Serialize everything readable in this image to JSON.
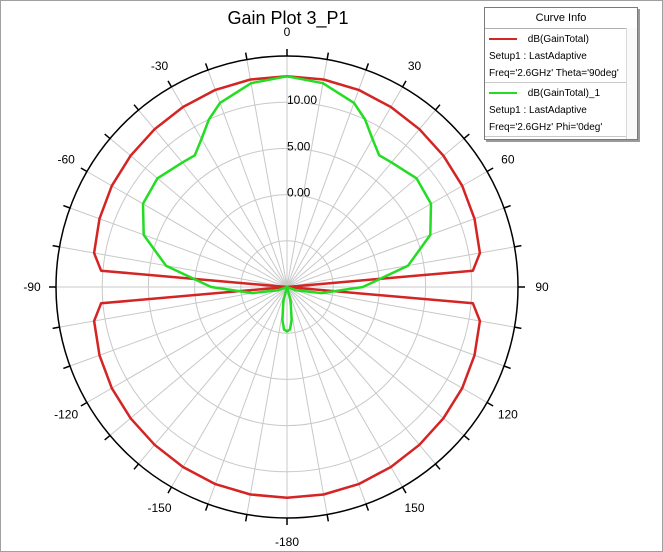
{
  "chart_data": {
    "type": "polar-line",
    "title": "Gain Plot 3_P1",
    "angular_axis": {
      "zero_location": "top",
      "direction": "clockwise",
      "tick_labels": [
        {
          "angle": 0,
          "label": "0"
        },
        {
          "angle": 30,
          "label": "30"
        },
        {
          "angle": 60,
          "label": "60"
        },
        {
          "angle": 90,
          "label": "90"
        },
        {
          "angle": 120,
          "label": "120"
        },
        {
          "angle": 150,
          "label": "150"
        },
        {
          "angle": 180,
          "label": "-180"
        },
        {
          "angle": -150,
          "label": "-150"
        },
        {
          "angle": -120,
          "label": "-120"
        },
        {
          "angle": -90,
          "label": "-90"
        },
        {
          "angle": -60,
          "label": "-60"
        },
        {
          "angle": -30,
          "label": "-30"
        }
      ]
    },
    "radial_axis": {
      "unit": "dB",
      "range": [
        -10,
        15
      ],
      "ticks": [
        -10,
        -5,
        0,
        5,
        10,
        15
      ],
      "tick_labels": [
        {
          "value": 0,
          "label": "0.00"
        },
        {
          "value": 5,
          "label": "5.00"
        },
        {
          "value": 10,
          "label": "10.00"
        }
      ]
    },
    "grid": true,
    "legend_position": "top-right",
    "legend": {
      "title": "Curve Info",
      "entries": [
        {
          "name": "dB(GainTotal)",
          "setup": "Setup1 : LastAdaptive",
          "params": "Freq='2.6GHz' Theta='90deg'",
          "color": "#d42424"
        },
        {
          "name": "dB(GainTotal)_1",
          "setup": "Setup1 : LastAdaptive",
          "params": "Freq='2.6GHz' Phi='0deg'",
          "color": "#22dd22"
        }
      ]
    },
    "series": [
      {
        "name": "dB(GainTotal)",
        "color": "#d42424",
        "points": [
          [
            0,
            12.8
          ],
          [
            10,
            12.8
          ],
          [
            20,
            12.7
          ],
          [
            30,
            12.5
          ],
          [
            40,
            12.3
          ],
          [
            50,
            12.1
          ],
          [
            60,
            11.9
          ],
          [
            70,
            11.6
          ],
          [
            80,
            11.2
          ],
          [
            85,
            10.2
          ],
          [
            90,
            -10
          ],
          [
            95,
            10.2
          ],
          [
            100,
            11.2
          ],
          [
            110,
            11.6
          ],
          [
            120,
            11.9
          ],
          [
            130,
            12.1
          ],
          [
            140,
            12.3
          ],
          [
            150,
            12.5
          ],
          [
            160,
            12.7
          ],
          [
            170,
            12.8
          ],
          [
            180,
            12.8
          ],
          [
            190,
            12.8
          ],
          [
            200,
            12.7
          ],
          [
            210,
            12.5
          ],
          [
            220,
            12.3
          ],
          [
            230,
            12.1
          ],
          [
            240,
            11.9
          ],
          [
            250,
            11.6
          ],
          [
            260,
            11.2
          ],
          [
            265,
            10.2
          ],
          [
            270,
            -10
          ],
          [
            275,
            10.2
          ],
          [
            280,
            11.2
          ],
          [
            290,
            11.6
          ],
          [
            300,
            11.9
          ],
          [
            310,
            12.1
          ],
          [
            320,
            12.3
          ],
          [
            330,
            12.5
          ],
          [
            340,
            12.7
          ],
          [
            350,
            12.8
          ],
          [
            360,
            12.8
          ]
        ]
      },
      {
        "name": "dB(GainTotal)_1",
        "color": "#22dd22",
        "points": [
          [
            0,
            12.8
          ],
          [
            10,
            12.4
          ],
          [
            20,
            11.2
          ],
          [
            25,
            10.0
          ],
          [
            30,
            8.5
          ],
          [
            35,
            7.4
          ],
          [
            40,
            7.6
          ],
          [
            50,
            8.3
          ],
          [
            60,
            8.0
          ],
          [
            70,
            6.5
          ],
          [
            80,
            3.3
          ],
          [
            90,
            -1.8
          ],
          [
            100,
            -6.2
          ],
          [
            110,
            -9.0
          ],
          [
            120,
            -10
          ],
          [
            150,
            -10
          ],
          [
            165,
            -8.5
          ],
          [
            172,
            -6.4
          ],
          [
            176,
            -5.4
          ],
          [
            180,
            -5.2
          ],
          [
            184,
            -5.4
          ],
          [
            188,
            -6.4
          ],
          [
            195,
            -8.5
          ],
          [
            210,
            -10
          ],
          [
            240,
            -10
          ],
          [
            250,
            -9.0
          ],
          [
            260,
            -6.2
          ],
          [
            270,
            -1.8
          ],
          [
            280,
            3.3
          ],
          [
            290,
            6.5
          ],
          [
            300,
            8.0
          ],
          [
            310,
            8.3
          ],
          [
            320,
            7.6
          ],
          [
            325,
            7.4
          ],
          [
            330,
            8.5
          ],
          [
            335,
            10.0
          ],
          [
            340,
            11.2
          ],
          [
            350,
            12.4
          ],
          [
            360,
            12.8
          ]
        ]
      }
    ]
  }
}
